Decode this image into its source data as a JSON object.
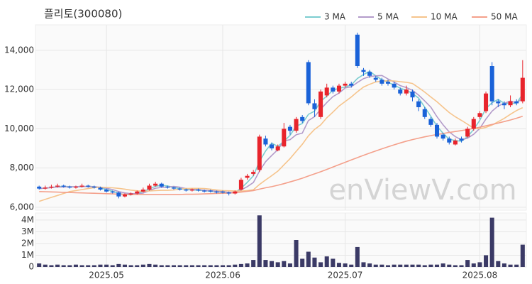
{
  "chart_data": {
    "type": "candlestick",
    "title": "플리토(300080)",
    "watermark": "enViewV.com",
    "up_color": "#e8242c",
    "down_color": "#1a62d8",
    "volume_color": "#3b3a66",
    "xlim": [
      -0.6,
      79.6
    ],
    "xticks": [
      {
        "value": 11,
        "label": "2025.05"
      },
      {
        "value": 30,
        "label": "2025.06"
      },
      {
        "value": 50,
        "label": "2025.07"
      },
      {
        "value": 72,
        "label": "2025.08"
      }
    ],
    "ylim": [
      5850,
      15300
    ],
    "yticks": [
      {
        "value": 6000,
        "label": "6,000"
      },
      {
        "value": 8000,
        "label": "8,000"
      },
      {
        "value": 10000,
        "label": "10,000"
      },
      {
        "value": 12000,
        "label": "12,000"
      },
      {
        "value": 14000,
        "label": "14,000"
      }
    ],
    "y2lim": [
      0,
      4600000
    ],
    "y2ticks": [
      0,
      {
        "value": 1000000,
        "label": "1M"
      },
      {
        "value": 2000000,
        "label": "2M"
      },
      {
        "value": 3000000,
        "label": "3M"
      },
      {
        "value": 4000000,
        "label": "4M"
      }
    ],
    "grid": true,
    "candles": [
      [
        7050,
        7100,
        6900,
        6950
      ],
      [
        6950,
        7100,
        6900,
        7000
      ],
      [
        7000,
        7150,
        6950,
        7050
      ],
      [
        7050,
        7200,
        7000,
        7100
      ],
      [
        7100,
        7150,
        7000,
        7050
      ],
      [
        7050,
        7100,
        6950,
        7000
      ],
      [
        7000,
        7100,
        6950,
        7050
      ],
      [
        7050,
        7200,
        7000,
        7100
      ],
      [
        7100,
        7150,
        7000,
        7050
      ],
      [
        7050,
        7100,
        6950,
        7000
      ],
      [
        7000,
        7050,
        6850,
        6900
      ],
      [
        6900,
        6950,
        6750,
        6800
      ],
      [
        6800,
        6850,
        6700,
        6750
      ],
      [
        6750,
        6800,
        6450,
        6550
      ],
      [
        6550,
        6700,
        6500,
        6650
      ],
      [
        6650,
        6750,
        6600,
        6700
      ],
      [
        6700,
        6850,
        6650,
        6800
      ],
      [
        6800,
        7000,
        6750,
        6900
      ],
      [
        6900,
        7200,
        6850,
        7100
      ],
      [
        7100,
        7300,
        7050,
        7200
      ],
      [
        7200,
        7250,
        7000,
        7050
      ],
      [
        7050,
        7100,
        6950,
        7000
      ],
      [
        7000,
        7050,
        6900,
        6950
      ],
      [
        6950,
        7000,
        6850,
        6900
      ],
      [
        6900,
        6950,
        6800,
        6850
      ],
      [
        6850,
        6950,
        6800,
        6900
      ],
      [
        6900,
        6950,
        6800,
        6850
      ],
      [
        6850,
        6900,
        6750,
        6800
      ],
      [
        6850,
        6900,
        6750,
        6800
      ],
      [
        6800,
        6850,
        6700,
        6750
      ],
      [
        6800,
        6850,
        6700,
        6750
      ],
      [
        6750,
        6800,
        6600,
        6700
      ],
      [
        6700,
        6850,
        6650,
        6800
      ],
      [
        6900,
        7500,
        6850,
        7400
      ],
      [
        7500,
        7700,
        7400,
        7600
      ],
      [
        7700,
        7900,
        7600,
        7800
      ],
      [
        7900,
        9700,
        7800,
        9600
      ],
      [
        9500,
        9650,
        9100,
        9200
      ],
      [
        9200,
        9300,
        8900,
        9000
      ],
      [
        8900,
        9200,
        8850,
        9100
      ],
      [
        9100,
        10300,
        9050,
        10000
      ],
      [
        10100,
        10200,
        9700,
        9900
      ],
      [
        9900,
        10600,
        9800,
        10500
      ],
      [
        10600,
        10700,
        10300,
        10400
      ],
      [
        13400,
        13500,
        11200,
        11300
      ],
      [
        11300,
        11500,
        10600,
        11000
      ],
      [
        10600,
        12000,
        10500,
        11900
      ],
      [
        11700,
        12300,
        11600,
        12100
      ],
      [
        12100,
        12200,
        11800,
        11900
      ],
      [
        11900,
        12300,
        11800,
        12200
      ],
      [
        12200,
        12400,
        12100,
        12300
      ],
      [
        12300,
        12400,
        12100,
        12200
      ],
      [
        14800,
        14900,
        13100,
        13200
      ],
      [
        13000,
        13100,
        12700,
        12900
      ],
      [
        12900,
        13000,
        12600,
        12700
      ],
      [
        12600,
        12700,
        12400,
        12500
      ],
      [
        12500,
        12600,
        12200,
        12300
      ],
      [
        12400,
        12500,
        12200,
        12300
      ],
      [
        12300,
        12400,
        12000,
        12100
      ],
      [
        12000,
        12100,
        11700,
        11800
      ],
      [
        11800,
        12200,
        11700,
        12000
      ],
      [
        11900,
        12000,
        11400,
        11600
      ],
      [
        11400,
        11500,
        10900,
        11100
      ],
      [
        11000,
        11100,
        10500,
        10600
      ],
      [
        10500,
        10600,
        10100,
        10200
      ],
      [
        10200,
        10300,
        9500,
        9600
      ],
      [
        9700,
        9800,
        9400,
        9500
      ],
      [
        9500,
        9600,
        9200,
        9300
      ],
      [
        9200,
        9500,
        9150,
        9400
      ],
      [
        9500,
        9600,
        9300,
        9400
      ],
      [
        9600,
        10100,
        9550,
        10000
      ],
      [
        10000,
        10600,
        9900,
        10500
      ],
      [
        10600,
        10900,
        10500,
        10800
      ],
      [
        10900,
        11900,
        10800,
        11800
      ],
      [
        13200,
        13400,
        11200,
        11400
      ],
      [
        11400,
        11500,
        11100,
        11300
      ],
      [
        11300,
        11400,
        11000,
        11200
      ],
      [
        11200,
        11700,
        11100,
        11400
      ],
      [
        11400,
        11500,
        11200,
        11300
      ],
      [
        11400,
        13500,
        11300,
        12600
      ]
    ],
    "volume": [
      300000,
      200000,
      150000,
      200000,
      150000,
      150000,
      200000,
      150000,
      150000,
      150000,
      200000,
      200000,
      150000,
      250000,
      200000,
      150000,
      150000,
      200000,
      250000,
      200000,
      150000,
      150000,
      150000,
      150000,
      150000,
      150000,
      150000,
      150000,
      150000,
      150000,
      150000,
      150000,
      200000,
      250000,
      300000,
      600000,
      4400000,
      600000,
      500000,
      400000,
      500000,
      300000,
      2300000,
      700000,
      1300000,
      800000,
      400000,
      900000,
      700000,
      350000,
      300000,
      200000,
      1700000,
      400000,
      300000,
      200000,
      200000,
      150000,
      200000,
      200000,
      200000,
      200000,
      200000,
      150000,
      200000,
      200000,
      300000,
      200000,
      150000,
      150000,
      600000,
      300000,
      400000,
      1000000,
      4200000,
      500000,
      300000,
      200000,
      200000,
      1900000
    ],
    "ma_series": [
      {
        "name": "3 MA",
        "color": "#7ccdd0",
        "values": [
          6950,
          6975,
          7000,
          7050,
          7067,
          7050,
          7033,
          7050,
          7067,
          7050,
          6983,
          6900,
          6817,
          6700,
          6650,
          6633,
          6717,
          6800,
          6933,
          7067,
          7117,
          7083,
          7000,
          6950,
          6900,
          6883,
          6867,
          6850,
          6817,
          6783,
          6767,
          6733,
          6750,
          6967,
          7267,
          7600,
          8333,
          8867,
          9267,
          9100,
          9367,
          9667,
          10133,
          10267,
          10733,
          10900,
          11400,
          11667,
          11967,
          12067,
          12133,
          12233,
          12567,
          12767,
          12933,
          12700,
          12500,
          12367,
          12233,
          12067,
          11967,
          11800,
          11567,
          11100,
          10633,
          10133,
          9767,
          9467,
          9400,
          9367,
          9600,
          9967,
          10433,
          11033,
          11333,
          11500,
          11300,
          11300,
          11300,
          11767
        ]
      },
      {
        "name": "5 MA",
        "color": "#b39bca",
        "values": [
          6950,
          6975,
          7000,
          7025,
          7030,
          7040,
          7050,
          7060,
          7050,
          7040,
          7020,
          6970,
          6900,
          6800,
          6730,
          6690,
          6690,
          6720,
          6850,
          6970,
          7010,
          7030,
          7060,
          7020,
          6950,
          6920,
          6900,
          6860,
          6840,
          6820,
          6790,
          6760,
          6760,
          6880,
          7050,
          7260,
          7840,
          8320,
          8640,
          8940,
          9380,
          9440,
          9700,
          9780,
          10420,
          10620,
          11000,
          11340,
          11640,
          11820,
          12080,
          12140,
          12360,
          12560,
          12660,
          12700,
          12720,
          12540,
          12380,
          12200,
          12100,
          11960,
          11720,
          11420,
          11100,
          10620,
          10200,
          9840,
          9600,
          9440,
          9520,
          9720,
          10020,
          10500,
          10900,
          11160,
          11300,
          11420,
          11320,
          11560
        ]
      },
      {
        "name": "10 MA",
        "color": "#f6c48c",
        "values": [
          6300,
          6400,
          6500,
          6600,
          6700,
          6800,
          6850,
          6900,
          6950,
          7000,
          7020,
          7010,
          6990,
          6960,
          6920,
          6870,
          6840,
          6810,
          6830,
          6850,
          6860,
          6860,
          6880,
          6920,
          6950,
          6960,
          6960,
          6950,
          6920,
          6880,
          6850,
          6840,
          6830,
          6820,
          6850,
          6890,
          7160,
          7390,
          7610,
          7840,
          8160,
          8480,
          8850,
          9210,
          9640,
          9970,
          10200,
          10560,
          10850,
          11160,
          11390,
          11620,
          11890,
          12130,
          12270,
          12390,
          12430,
          12450,
          12440,
          12400,
          12370,
          12310,
          12100,
          11870,
          11620,
          11380,
          11100,
          10830,
          10610,
          10430,
          10230,
          10030,
          10000,
          10070,
          10190,
          10360,
          10530,
          10740,
          10930,
          11080
        ]
      },
      {
        "name": "50 MA",
        "color": "#f4a08b",
        "values": [
          6800,
          6790,
          6780,
          6770,
          6760,
          6750,
          6740,
          6730,
          6720,
          6710,
          6700,
          6690,
          6680,
          6670,
          6660,
          6650,
          6650,
          6650,
          6650,
          6650,
          6650,
          6650,
          6650,
          6650,
          6660,
          6660,
          6670,
          6680,
          6690,
          6700,
          6710,
          6720,
          6740,
          6770,
          6810,
          6850,
          6920,
          6990,
          7050,
          7120,
          7200,
          7290,
          7380,
          7480,
          7590,
          7700,
          7810,
          7930,
          8050,
          8170,
          8290,
          8410,
          8530,
          8650,
          8760,
          8870,
          8980,
          9080,
          9180,
          9280,
          9370,
          9450,
          9520,
          9590,
          9650,
          9710,
          9760,
          9810,
          9860,
          9910,
          9960,
          10020,
          10080,
          10150,
          10220,
          10290,
          10370,
          10450,
          10540,
          10640
        ]
      }
    ]
  }
}
